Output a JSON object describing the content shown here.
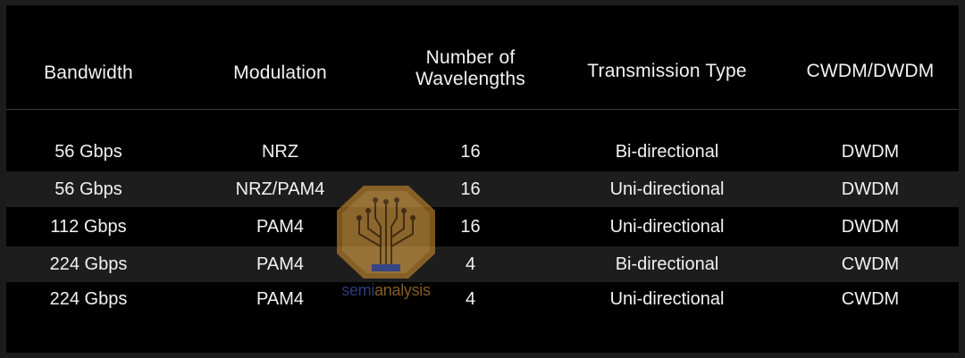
{
  "table": {
    "headers": [
      "Bandwidth",
      "Modulation",
      "Number of Wavelengths",
      "Transmission Type",
      "CWDM/DWDM"
    ],
    "header_lines": {
      "wavelengths_line1": "Number of",
      "wavelengths_line2": "Wavelengths"
    },
    "rows": [
      {
        "bandwidth": "56 Gbps",
        "modulation": "NRZ",
        "wavelengths": "16",
        "transmission": "Bi-directional",
        "wdm": "DWDM"
      },
      {
        "bandwidth": "56 Gbps",
        "modulation": "NRZ/PAM4",
        "wavelengths": "16",
        "transmission": "Uni-directional",
        "wdm": "DWDM"
      },
      {
        "bandwidth": "112 Gbps",
        "modulation": "PAM4",
        "wavelengths": "16",
        "transmission": "Uni-directional",
        "wdm": "DWDM"
      },
      {
        "bandwidth": "224 Gbps",
        "modulation": "PAM4",
        "wavelengths": "4",
        "transmission": "Bi-directional",
        "wdm": "CWDM"
      },
      {
        "bandwidth": "224 Gbps",
        "modulation": "PAM4",
        "wavelengths": "4",
        "transmission": "Uni-directional",
        "wdm": "CWDM"
      }
    ]
  },
  "watermark": {
    "logo_icon": "circuit-tree-icon",
    "text_part1": "semi",
    "text_part2": "analysis",
    "colors": {
      "semi": "#4a5fc4",
      "analysis": "#d4923a",
      "badge": "#c98a2e"
    }
  },
  "colors": {
    "background": "#000000",
    "row_shade": "#1d1d1d",
    "text": "#f2f2f2"
  }
}
